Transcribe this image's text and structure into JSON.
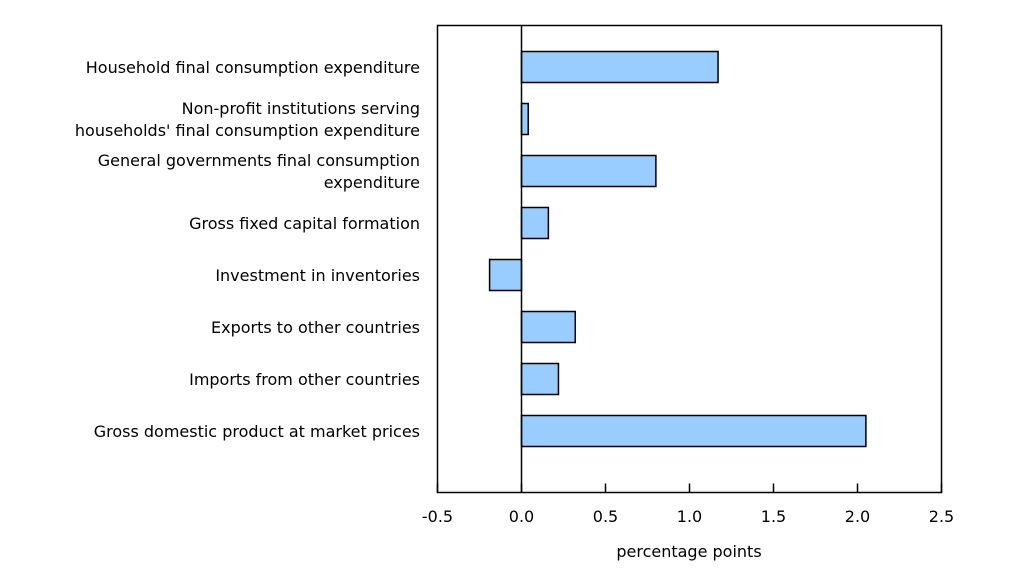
{
  "chart_data": {
    "type": "bar",
    "orientation": "horizontal",
    "categories": [
      [
        "Household final consumption expenditure"
      ],
      [
        "Non-profit institutions serving",
        "households' final consumption expenditure"
      ],
      [
        "General governments final consumption",
        "expenditure"
      ],
      [
        "Gross fixed capital formation"
      ],
      [
        "Investment in inventories"
      ],
      [
        "Exports to other countries"
      ],
      [
        "Imports from other countries"
      ],
      [
        "Gross domestic product at market prices"
      ]
    ],
    "values": [
      1.17,
      0.04,
      0.8,
      0.16,
      -0.19,
      0.32,
      0.22,
      2.05
    ],
    "xlabel": "percentage points",
    "xlim": [
      -0.5,
      2.5
    ],
    "xticks": [
      "-0.5",
      "0.0",
      "0.5",
      "1.0",
      "1.5",
      "2.0",
      "2.5"
    ],
    "tick_values": [
      -0.5,
      0,
      0.5,
      1.0,
      1.5,
      2.0,
      2.5
    ],
    "bar_color": "#99ccff",
    "grid": false
  }
}
